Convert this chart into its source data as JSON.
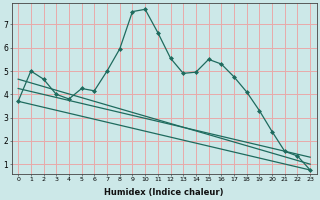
{
  "xlabel": "Humidex (Indice chaleur)",
  "bg_color": "#cce8e8",
  "grid_color": "#e8aaaa",
  "line_color": "#1e6b5e",
  "marker_color": "#1e6b5e",
  "line1_x": [
    0,
    1,
    2,
    3,
    4,
    5,
    6,
    7,
    8,
    9,
    10,
    11,
    12,
    13,
    14,
    15,
    16,
    17,
    18,
    19,
    20,
    21,
    22,
    23
  ],
  "line1_y": [
    3.7,
    5.0,
    4.65,
    4.0,
    3.8,
    4.25,
    4.15,
    5.0,
    5.95,
    7.55,
    7.65,
    6.65,
    5.55,
    4.9,
    4.95,
    5.5,
    5.3,
    4.75,
    4.1,
    3.3,
    2.4,
    1.55,
    1.35,
    0.75
  ],
  "line2_x": [
    0,
    23
  ],
  "line2_y": [
    4.65,
    1.0
  ],
  "line3_x": [
    0,
    23
  ],
  "line3_y": [
    4.25,
    1.3
  ],
  "line4_x": [
    0,
    23
  ],
  "line4_y": [
    3.7,
    0.75
  ],
  "xlim": [
    -0.5,
    23.5
  ],
  "ylim": [
    0.6,
    7.9
  ],
  "yticks": [
    1,
    2,
    3,
    4,
    5,
    6,
    7
  ],
  "xticks": [
    0,
    1,
    2,
    3,
    4,
    5,
    6,
    7,
    8,
    9,
    10,
    11,
    12,
    13,
    14,
    15,
    16,
    17,
    18,
    19,
    20,
    21,
    22,
    23
  ]
}
